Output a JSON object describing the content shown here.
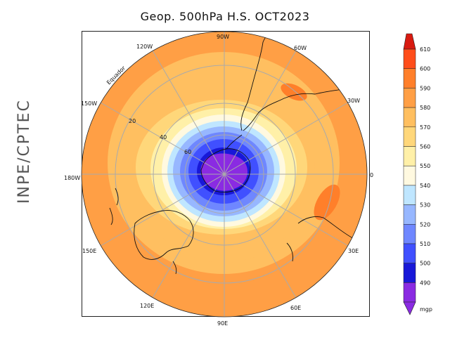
{
  "title": "Geop. 500hPa H.S. OCT2023",
  "side_label": "INPE/CPTEC",
  "map": {
    "longitude_labels": {
      "lon_90W": "90W",
      "lon_60W": "60W",
      "lon_30W": "30W",
      "lon_0": "0",
      "lon_30E": "30E",
      "lon_60E": "60E",
      "lon_90E": "90E",
      "lon_120E": "120E",
      "lon_150E": "150E",
      "lon_180W": "180W",
      "lon_150W": "150W",
      "lon_120W": "120W"
    },
    "latitude_labels": {
      "lat20": "20",
      "lat40": "40",
      "lat60": "60"
    },
    "equator_label": "Equador"
  },
  "colorbar": {
    "unit": "mgp",
    "levels": [
      "610",
      "600",
      "590",
      "580",
      "570",
      "560",
      "550",
      "540",
      "530",
      "520",
      "510",
      "500",
      "490"
    ],
    "colors": [
      "#ff4d1a",
      "#ff7f2a",
      "#ff9f45",
      "#ffbf60",
      "#ffd77a",
      "#fff0a8",
      "#fff9e0",
      "#bfe6ff",
      "#97b7ff",
      "#6f87ff",
      "#4050ff",
      "#1818d8",
      "#8a2be2"
    ],
    "bottom_arrow_color": "#8a2be2",
    "top_arrow_color": "#d81a10"
  }
}
